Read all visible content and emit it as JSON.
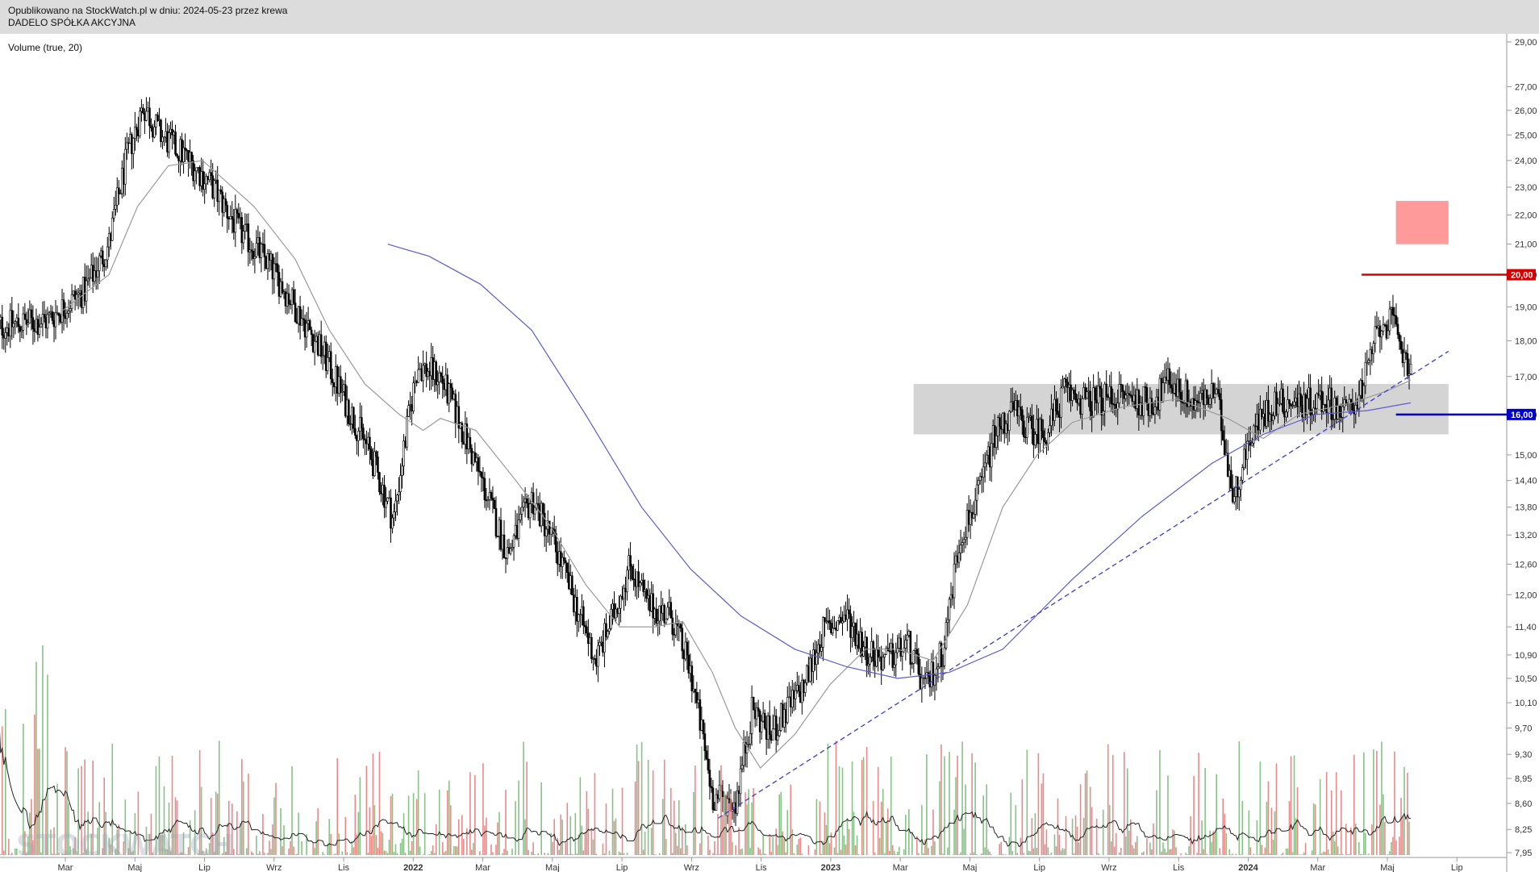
{
  "header": {
    "published": "Opublikowano na StockWatch.pl w dniu: 2024-05-23 przez krewa",
    "company": "DADELO SPÓŁKA AKCYJNA"
  },
  "indicator_label": "Volume (true, 20)",
  "watermark": "STOCKWATCH",
  "colors": {
    "candle": "#000000",
    "ma_short": "#9a9a9a",
    "ma_long": "#5b5bd6",
    "support_zone": "#d4d4d4",
    "target_zone": "#ff9a9a",
    "level_20": "#d60000",
    "level_16": "#0000c8",
    "trendline": "#3a3ad0",
    "volume_up": "#88c288",
    "volume_down": "#e88a8a"
  },
  "chart_data": {
    "type": "candlestick",
    "price_axis": {
      "ticks": [
        "7,95",
        "8,25",
        "8,60",
        "8,95",
        "9,30",
        "9,70",
        "10,10",
        "10,50",
        "10,90",
        "11,40",
        "12,00",
        "12,60",
        "13,20",
        "13,80",
        "14,40",
        "15,00",
        "16,00",
        "17,00",
        "18,00",
        "19,00",
        "20,00",
        "21,00",
        "22,00",
        "23,00",
        "24,00",
        "25,00",
        "26,00",
        "27,00",
        "29,00"
      ],
      "scale": "log",
      "range": [
        7.85,
        29.5
      ]
    },
    "time_axis": {
      "labels": [
        "Mar",
        "Maj",
        "Lip",
        "Wrz",
        "Lis",
        "2022",
        "Mar",
        "Maj",
        "Lip",
        "Wrz",
        "Lis",
        "2023",
        "Mar",
        "Maj",
        "Lip",
        "Wrz",
        "Lis",
        "2024",
        "Mar",
        "Maj",
        "Lip"
      ],
      "range": [
        "2021-01",
        "2024-08"
      ]
    },
    "price_path": [
      [
        "2021-01-01",
        18.4
      ],
      [
        "2021-02-15",
        18.6
      ],
      [
        "2021-03-20",
        19.5
      ],
      [
        "2021-04-10",
        21.0
      ],
      [
        "2021-04-25",
        24.0
      ],
      [
        "2021-05-10",
        26.2
      ],
      [
        "2021-05-25",
        25.0
      ],
      [
        "2021-06-15",
        24.2
      ],
      [
        "2021-07-10",
        23.0
      ],
      [
        "2021-08-01",
        21.5
      ],
      [
        "2021-08-25",
        20.5
      ],
      [
        "2021-09-20",
        19.0
      ],
      [
        "2021-10-15",
        17.6
      ],
      [
        "2021-11-05",
        16.2
      ],
      [
        "2021-11-25",
        15.0
      ],
      [
        "2021-12-15",
        13.5
      ],
      [
        "2022-01-05",
        17.3
      ],
      [
        "2022-01-25",
        17.0
      ],
      [
        "2022-02-15",
        15.5
      ],
      [
        "2022-03-10",
        13.8
      ],
      [
        "2022-03-25",
        12.8
      ],
      [
        "2022-04-15",
        14.0
      ],
      [
        "2022-05-05",
        13.0
      ],
      [
        "2022-05-25",
        11.7
      ],
      [
        "2022-06-10",
        10.8
      ],
      [
        "2022-06-25",
        11.6
      ],
      [
        "2022-07-10",
        12.6
      ],
      [
        "2022-07-25",
        11.8
      ],
      [
        "2022-08-15",
        11.6
      ],
      [
        "2022-09-01",
        10.6
      ],
      [
        "2022-09-20",
        8.7
      ],
      [
        "2022-10-10",
        8.6
      ],
      [
        "2022-10-25",
        10.0
      ],
      [
        "2022-11-10",
        9.6
      ],
      [
        "2022-11-25",
        10.0
      ],
      [
        "2022-12-10",
        10.4
      ],
      [
        "2022-12-25",
        11.3
      ],
      [
        "2023-01-15",
        11.6
      ],
      [
        "2023-02-01",
        11.0
      ],
      [
        "2023-02-20",
        10.8
      ],
      [
        "2023-03-10",
        11.1
      ],
      [
        "2023-03-25",
        10.3
      ],
      [
        "2023-04-10",
        11.0
      ],
      [
        "2023-04-25",
        13.2
      ],
      [
        "2023-05-10",
        14.0
      ],
      [
        "2023-05-25",
        15.5
      ],
      [
        "2023-06-10",
        16.1
      ],
      [
        "2023-06-25",
        15.6
      ],
      [
        "2023-07-10",
        15.6
      ],
      [
        "2023-07-25",
        16.6
      ],
      [
        "2023-08-15",
        16.3
      ],
      [
        "2023-09-10",
        16.5
      ],
      [
        "2023-10-10",
        16.3
      ],
      [
        "2023-10-25",
        16.9
      ],
      [
        "2023-11-15",
        16.3
      ],
      [
        "2023-12-05",
        16.5
      ],
      [
        "2023-12-20",
        14.0
      ],
      [
        "2024-01-05",
        15.6
      ],
      [
        "2024-01-25",
        16.3
      ],
      [
        "2024-02-15",
        16.3
      ],
      [
        "2024-03-10",
        16.4
      ],
      [
        "2024-03-25",
        16.0
      ],
      [
        "2024-04-10",
        16.6
      ],
      [
        "2024-04-25",
        18.4
      ],
      [
        "2024-05-05",
        18.6
      ],
      [
        "2024-05-23",
        17.2
      ]
    ],
    "ma_short_path": [
      [
        "2021-03-01",
        18.9
      ],
      [
        "2021-04-10",
        20.0
      ],
      [
        "2021-05-05",
        22.3
      ],
      [
        "2021-06-01",
        23.8
      ],
      [
        "2021-07-01",
        24.0
      ],
      [
        "2021-08-15",
        22.3
      ],
      [
        "2021-09-20",
        20.5
      ],
      [
        "2021-10-20",
        18.3
      ],
      [
        "2021-11-20",
        16.8
      ],
      [
        "2021-12-20",
        16.0
      ],
      [
        "2022-01-10",
        15.6
      ],
      [
        "2022-01-25",
        15.9
      ],
      [
        "2022-02-25",
        15.6
      ],
      [
        "2022-04-01",
        14.4
      ],
      [
        "2022-05-01",
        13.4
      ],
      [
        "2022-06-01",
        12.2
      ],
      [
        "2022-07-01",
        11.4
      ],
      [
        "2022-08-01",
        11.4
      ],
      [
        "2022-08-25",
        11.5
      ],
      [
        "2022-09-20",
        10.6
      ],
      [
        "2022-10-10",
        9.7
      ],
      [
        "2022-11-01",
        9.1
      ],
      [
        "2022-12-01",
        9.6
      ],
      [
        "2023-01-01",
        10.4
      ],
      [
        "2023-02-01",
        11.0
      ],
      [
        "2023-03-01",
        11.0
      ],
      [
        "2023-04-01",
        10.8
      ],
      [
        "2023-05-01",
        11.8
      ],
      [
        "2023-06-01",
        13.8
      ],
      [
        "2023-07-01",
        15.0
      ],
      [
        "2023-08-01",
        15.8
      ],
      [
        "2023-09-15",
        16.2
      ],
      [
        "2023-11-01",
        16.4
      ],
      [
        "2023-12-15",
        15.9
      ],
      [
        "2024-01-15",
        15.4
      ],
      [
        "2024-02-15",
        16.0
      ],
      [
        "2024-04-01",
        16.3
      ],
      [
        "2024-05-01",
        16.6
      ],
      [
        "2024-05-23",
        16.9
      ]
    ],
    "ma_long_path": [
      [
        "2021-12-10",
        21.0
      ],
      [
        "2022-01-15",
        20.6
      ],
      [
        "2022-03-01",
        19.7
      ],
      [
        "2022-04-15",
        18.3
      ],
      [
        "2022-06-01",
        16.0
      ],
      [
        "2022-07-20",
        13.8
      ],
      [
        "2022-09-01",
        12.5
      ],
      [
        "2022-10-15",
        11.6
      ],
      [
        "2022-12-01",
        11.0
      ],
      [
        "2023-01-15",
        10.7
      ],
      [
        "2023-03-01",
        10.5
      ],
      [
        "2023-04-15",
        10.6
      ],
      [
        "2023-06-01",
        11.0
      ],
      [
        "2023-08-01",
        12.3
      ],
      [
        "2023-10-01",
        13.6
      ],
      [
        "2023-12-01",
        14.8
      ],
      [
        "2024-01-15",
        15.5
      ],
      [
        "2024-03-01",
        16.0
      ],
      [
        "2024-04-15",
        16.1
      ],
      [
        "2024-05-23",
        16.3
      ]
    ],
    "support_zone": {
      "from": "2023-03-15",
      "to": "2024-06-25",
      "low": 15.5,
      "high": 16.8
    },
    "target_zone": {
      "from": "2024-05-10",
      "to": "2024-06-25",
      "low": 21.0,
      "high": 22.5
    },
    "levels": [
      {
        "label": "20,00",
        "value": 20.0,
        "from": "2024-04-10",
        "color": "#d60000"
      },
      {
        "label": "16,00",
        "value": 16.0,
        "from": "2024-05-10",
        "color": "#0000c8"
      }
    ],
    "trendline": {
      "from": [
        "2022-09-25",
        8.4
      ],
      "to": [
        "2024-06-25",
        17.7
      ]
    },
    "volume_max": 8.8
  }
}
